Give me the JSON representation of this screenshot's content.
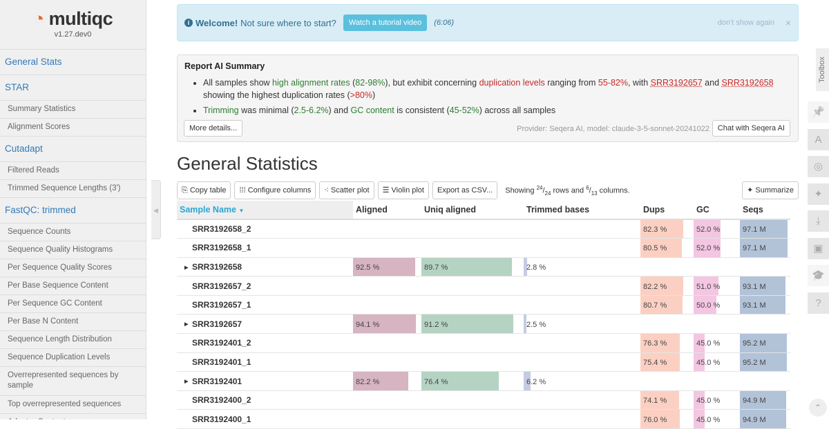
{
  "sidebar": {
    "logo": "multiqc",
    "version": "v1.27.dev0",
    "items": [
      {
        "label": "General Stats",
        "type": "h"
      },
      {
        "label": "STAR",
        "type": "h"
      },
      {
        "label": "Summary Statistics",
        "type": "s"
      },
      {
        "label": "Alignment Scores",
        "type": "s"
      },
      {
        "label": "Cutadapt",
        "type": "h"
      },
      {
        "label": "Filtered Reads",
        "type": "s"
      },
      {
        "label": "Trimmed Sequence Lengths (3')",
        "type": "s"
      },
      {
        "label": "FastQC: trimmed",
        "type": "h"
      },
      {
        "label": "Sequence Counts",
        "type": "s"
      },
      {
        "label": "Sequence Quality Histograms",
        "type": "s"
      },
      {
        "label": "Per Sequence Quality Scores",
        "type": "s"
      },
      {
        "label": "Per Base Sequence Content",
        "type": "s"
      },
      {
        "label": "Per Sequence GC Content",
        "type": "s"
      },
      {
        "label": "Per Base N Content",
        "type": "s"
      },
      {
        "label": "Sequence Length Distribution",
        "type": "s"
      },
      {
        "label": "Sequence Duplication Levels",
        "type": "s"
      },
      {
        "label": "Overrepresented sequences by sample",
        "type": "s2"
      },
      {
        "label": "Top overrepresented sequences",
        "type": "s"
      },
      {
        "label": "Adapter Content",
        "type": "s"
      }
    ]
  },
  "welcome": {
    "bold": "Welcome!",
    "text": "Not sure where to start?",
    "button": "Watch a tutorial video",
    "duration": "(6:06)",
    "dismiss": "don't show again",
    "close": "×"
  },
  "ai": {
    "title": "Report AI Summary",
    "b1": [
      "All samples show ",
      "high alignment rates",
      " (",
      "82-98%",
      "), but exhibit concerning ",
      "duplication levels",
      " ranging from ",
      "55-82%",
      ", with ",
      "SRR3192657",
      " and ",
      "SRR3192658",
      " showing the highest duplication rates (",
      ">80%",
      ")"
    ],
    "b2": [
      "Trimming",
      " was minimal (",
      "2.5-6.2%",
      ") and ",
      "GC content",
      " is consistent (",
      "45-52%",
      ") across all samples"
    ],
    "more": "More details...",
    "provider": "Provider: Seqera AI, model: claude-3-5-sonnet-20241022",
    "chat": "Chat with Seqera AI"
  },
  "page_title": "General Statistics",
  "toolbar": {
    "copy": "Copy table",
    "configure": "Configure columns",
    "scatter": "Scatter plot",
    "violin": "Violin plot",
    "export": "Export as CSV...",
    "showing_pre": "Showing ",
    "rows_n": "24",
    "rows_d": "24",
    "showing_mid": " rows and ",
    "cols_n": "6",
    "cols_d": "13",
    "showing_post": " columns.",
    "summarize": "Summarize"
  },
  "table": {
    "headers": [
      "Sample Name",
      "Aligned",
      "Uniq aligned",
      "Trimmed bases",
      "Dups",
      "GC",
      "Seqs"
    ],
    "colors": {
      "aligned": "#d6b4c2",
      "uniq": "#b5d3c3",
      "trimmed": "#c5cbe3",
      "dups": "#fbd0c2",
      "gc": "#f3c6e2",
      "seqs": "#b2c3d8"
    },
    "rows": [
      {
        "name": "SRR3192658_2",
        "group": false,
        "dups": "82.3 %",
        "gc": "52.0 %",
        "seqs": "97.1 M",
        "d": 82.3,
        "g": 52.0,
        "s": 97.1
      },
      {
        "name": "SRR3192658_1",
        "group": false,
        "dups": "80.5 %",
        "gc": "52.0 %",
        "seqs": "97.1 M",
        "d": 80.5,
        "g": 52.0,
        "s": 97.1
      },
      {
        "name": "SRR3192658",
        "group": true,
        "aligned": "92.5 %",
        "uniq": "89.7 %",
        "trimmed": "2.8 %",
        "a": 92.5,
        "u": 89.7,
        "t": 2.8
      },
      {
        "name": "SRR3192657_2",
        "group": false,
        "dups": "82.2 %",
        "gc": "51.0 %",
        "seqs": "93.1 M",
        "d": 82.2,
        "g": 51.0,
        "s": 93.1
      },
      {
        "name": "SRR3192657_1",
        "group": false,
        "dups": "80.7 %",
        "gc": "50.0 %",
        "seqs": "93.1 M",
        "d": 80.7,
        "g": 50.0,
        "s": 93.1
      },
      {
        "name": "SRR3192657",
        "group": true,
        "aligned": "94.1 %",
        "uniq": "91.2 %",
        "trimmed": "2.5 %",
        "a": 94.1,
        "u": 91.2,
        "t": 2.5
      },
      {
        "name": "SRR3192401_2",
        "group": false,
        "dups": "76.3 %",
        "gc": "45.0 %",
        "seqs": "95.2 M",
        "d": 76.3,
        "g": 45.0,
        "s": 95.2
      },
      {
        "name": "SRR3192401_1",
        "group": false,
        "dups": "75.4 %",
        "gc": "45.0 %",
        "seqs": "95.2 M",
        "d": 75.4,
        "g": 45.0,
        "s": 95.2
      },
      {
        "name": "SRR3192401",
        "group": true,
        "aligned": "82.2 %",
        "uniq": "76.4 %",
        "trimmed": "6.2 %",
        "a": 82.2,
        "u": 76.4,
        "t": 6.2
      },
      {
        "name": "SRR3192400_2",
        "group": false,
        "dups": "74.1 %",
        "gc": "45.0 %",
        "seqs": "94.9 M",
        "d": 74.1,
        "g": 45.0,
        "s": 94.9
      },
      {
        "name": "SRR3192400_1",
        "group": false,
        "dups": "76.0 %",
        "gc": "45.0 %",
        "seqs": "94.9 M",
        "d": 76.0,
        "g": 45.0,
        "s": 94.9
      }
    ]
  },
  "toolbox": {
    "label": "Toolbox",
    "icons": [
      "pin-icon",
      "font-icon",
      "eye-slash-icon",
      "sparkle-icon",
      "download-icon",
      "save-icon",
      "graduation-cap-icon",
      "help-icon"
    ]
  }
}
